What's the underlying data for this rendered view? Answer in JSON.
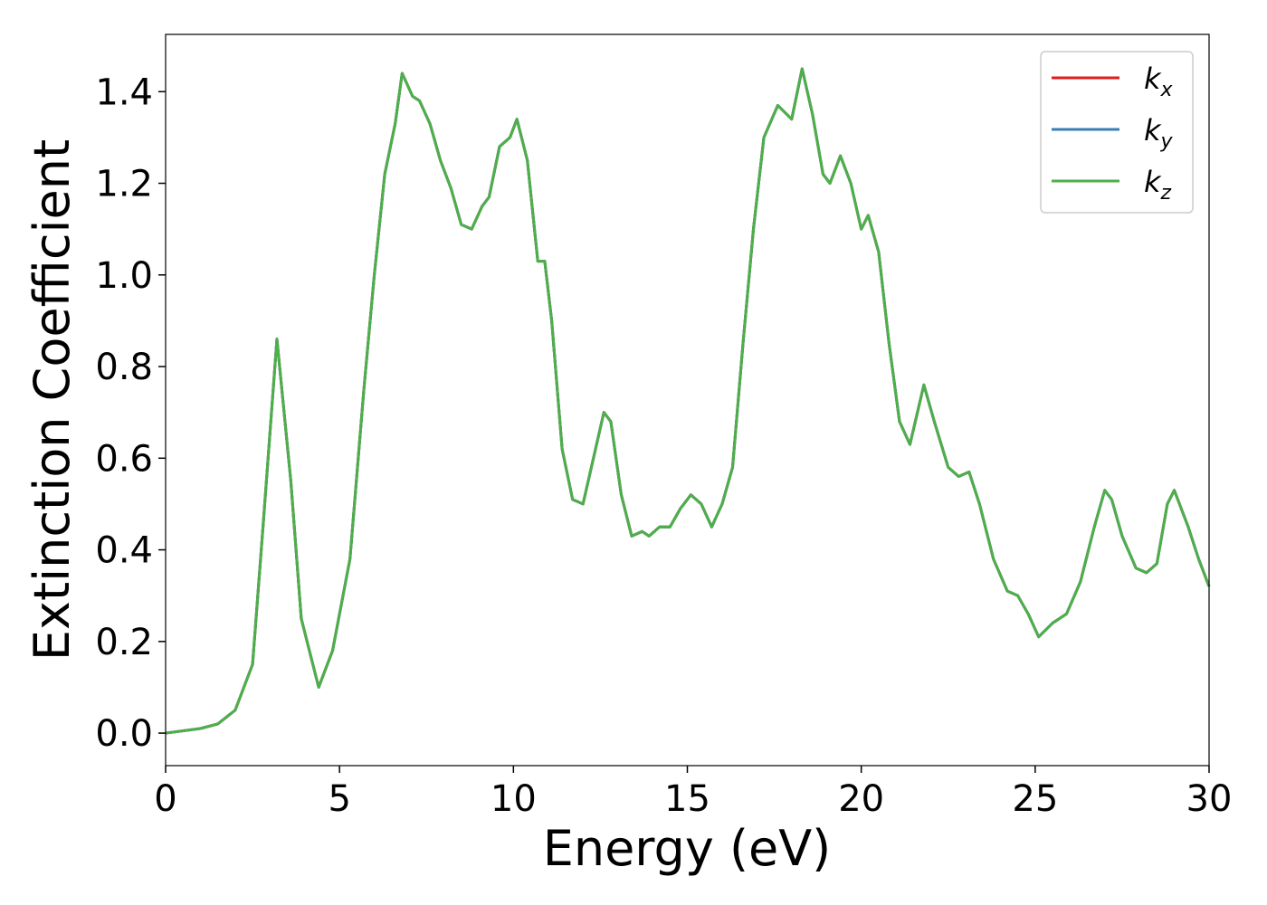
{
  "chart_data": {
    "type": "line",
    "xlabel": "Energy (eV)",
    "ylabel": "Extinction Coefficient",
    "x": [
      0,
      1,
      1.5,
      2.0,
      2.5,
      2.8,
      3.2,
      3.6,
      3.9,
      4.4,
      4.8,
      5.3,
      5.7,
      6.0,
      6.3,
      6.6,
      6.8,
      7.1,
      7.3,
      7.6,
      7.9,
      8.2,
      8.5,
      8.8,
      9.1,
      9.3,
      9.6,
      9.9,
      10.1,
      10.4,
      10.7,
      10.9,
      11.1,
      11.4,
      11.7,
      12.0,
      12.3,
      12.6,
      12.8,
      13.1,
      13.4,
      13.7,
      13.9,
      14.2,
      14.5,
      14.8,
      15.1,
      15.4,
      15.7,
      16.0,
      16.3,
      16.6,
      16.9,
      17.2,
      17.6,
      18.0,
      18.3,
      18.6,
      18.9,
      19.1,
      19.4,
      19.7,
      20.0,
      20.2,
      20.5,
      20.8,
      21.1,
      21.4,
      21.8,
      22.1,
      22.5,
      22.8,
      23.1,
      23.4,
      23.8,
      24.2,
      24.5,
      24.8,
      25.1,
      25.5,
      25.9,
      26.3,
      26.7,
      27.0,
      27.2,
      27.5,
      27.9,
      28.2,
      28.5,
      28.8,
      29.0,
      29.4,
      29.7,
      30.0
    ],
    "series": [
      {
        "name": "kx",
        "color": "#e41a1c",
        "values": [
          0,
          0.01,
          0.02,
          0.05,
          0.15,
          0.45,
          0.86,
          0.55,
          0.25,
          0.1,
          0.18,
          0.38,
          0.75,
          1.0,
          1.22,
          1.33,
          1.44,
          1.39,
          1.38,
          1.33,
          1.25,
          1.19,
          1.11,
          1.1,
          1.15,
          1.17,
          1.28,
          1.3,
          1.34,
          1.25,
          1.03,
          1.03,
          0.9,
          0.62,
          0.51,
          0.5,
          0.6,
          0.7,
          0.68,
          0.52,
          0.43,
          0.44,
          0.43,
          0.45,
          0.45,
          0.49,
          0.52,
          0.5,
          0.45,
          0.5,
          0.58,
          0.85,
          1.1,
          1.3,
          1.37,
          1.34,
          1.45,
          1.35,
          1.22,
          1.2,
          1.26,
          1.2,
          1.1,
          1.13,
          1.05,
          0.85,
          0.68,
          0.63,
          0.76,
          0.68,
          0.58,
          0.56,
          0.57,
          0.5,
          0.38,
          0.31,
          0.3,
          0.26,
          0.21,
          0.24,
          0.26,
          0.33,
          0.45,
          0.53,
          0.51,
          0.43,
          0.36,
          0.35,
          0.37,
          0.5,
          0.53,
          0.45,
          0.38,
          0.32
        ]
      },
      {
        "name": "ky",
        "color": "#377eb8",
        "values": [
          0,
          0.01,
          0.02,
          0.05,
          0.15,
          0.45,
          0.86,
          0.55,
          0.25,
          0.1,
          0.18,
          0.38,
          0.75,
          1.0,
          1.22,
          1.33,
          1.44,
          1.39,
          1.38,
          1.33,
          1.25,
          1.19,
          1.11,
          1.1,
          1.15,
          1.17,
          1.28,
          1.3,
          1.34,
          1.25,
          1.03,
          1.03,
          0.9,
          0.62,
          0.51,
          0.5,
          0.6,
          0.7,
          0.68,
          0.52,
          0.43,
          0.44,
          0.43,
          0.45,
          0.45,
          0.49,
          0.52,
          0.5,
          0.45,
          0.5,
          0.58,
          0.85,
          1.1,
          1.3,
          1.37,
          1.34,
          1.45,
          1.35,
          1.22,
          1.2,
          1.26,
          1.2,
          1.1,
          1.13,
          1.05,
          0.85,
          0.68,
          0.63,
          0.76,
          0.68,
          0.58,
          0.56,
          0.57,
          0.5,
          0.38,
          0.31,
          0.3,
          0.26,
          0.21,
          0.24,
          0.26,
          0.33,
          0.45,
          0.53,
          0.51,
          0.43,
          0.36,
          0.35,
          0.37,
          0.5,
          0.53,
          0.45,
          0.38,
          0.32
        ]
      },
      {
        "name": "kz",
        "color": "#4daf4a",
        "values": [
          0,
          0.01,
          0.02,
          0.05,
          0.15,
          0.45,
          0.86,
          0.55,
          0.25,
          0.1,
          0.18,
          0.38,
          0.75,
          1.0,
          1.22,
          1.33,
          1.44,
          1.39,
          1.38,
          1.33,
          1.25,
          1.19,
          1.11,
          1.1,
          1.15,
          1.17,
          1.28,
          1.3,
          1.34,
          1.25,
          1.03,
          1.03,
          0.9,
          0.62,
          0.51,
          0.5,
          0.6,
          0.7,
          0.68,
          0.52,
          0.43,
          0.44,
          0.43,
          0.45,
          0.45,
          0.49,
          0.52,
          0.5,
          0.45,
          0.5,
          0.58,
          0.85,
          1.1,
          1.3,
          1.37,
          1.34,
          1.45,
          1.35,
          1.22,
          1.2,
          1.26,
          1.2,
          1.1,
          1.13,
          1.05,
          0.85,
          0.68,
          0.63,
          0.76,
          0.68,
          0.58,
          0.56,
          0.57,
          0.5,
          0.38,
          0.31,
          0.3,
          0.26,
          0.21,
          0.24,
          0.26,
          0.33,
          0.45,
          0.53,
          0.51,
          0.43,
          0.36,
          0.35,
          0.37,
          0.5,
          0.53,
          0.45,
          0.38,
          0.32
        ]
      }
    ],
    "xlim": [
      0,
      30
    ],
    "xticks": [
      0,
      5,
      10,
      15,
      20,
      25,
      30
    ],
    "ylim": [
      -0.071,
      1.525
    ],
    "yticks": [
      {
        "value": 0,
        "label": "0.0"
      },
      0.2,
      0.4,
      0.6,
      0.8,
      {
        "value": 1,
        "label": "1.0"
      },
      1.2,
      1.4
    ],
    "legend": "upper right",
    "grid": false
  }
}
